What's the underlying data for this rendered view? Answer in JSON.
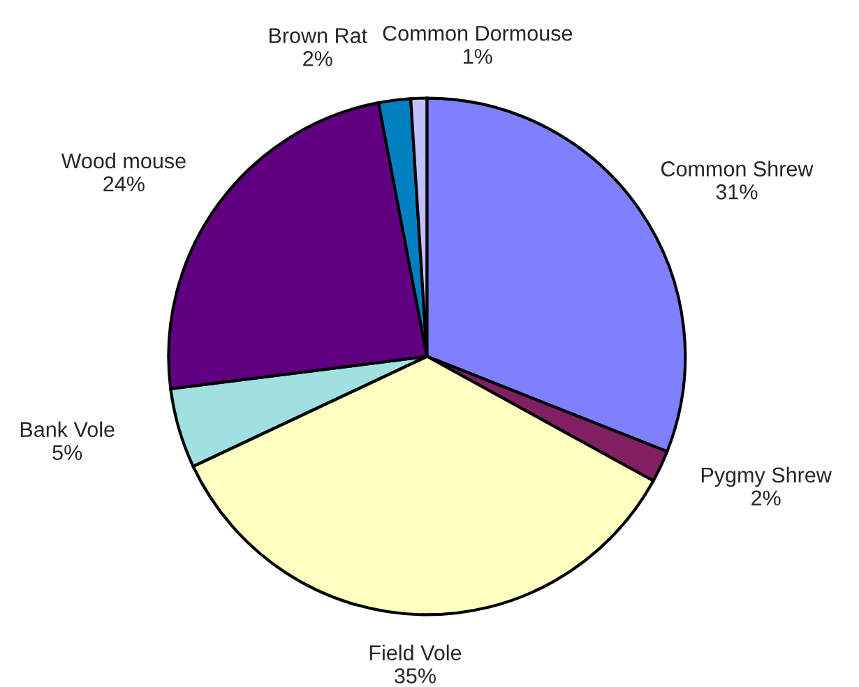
{
  "chart_data": {
    "type": "pie",
    "categories": [
      "Common Shrew",
      "Pygmy Shrew",
      "Field Vole",
      "Bank Vole",
      "Wood mouse",
      "Brown Rat",
      "Common Dormouse"
    ],
    "values": [
      31,
      2,
      35,
      5,
      24,
      2,
      1
    ],
    "colors": [
      "#8080ff",
      "#802060",
      "#ffffc0",
      "#a0e0e0",
      "#600080",
      "#0080c0",
      "#c0c0ff"
    ],
    "value_labels": [
      "31%",
      "2%",
      "35%",
      "5%",
      "24%",
      "2%",
      "1%"
    ]
  }
}
